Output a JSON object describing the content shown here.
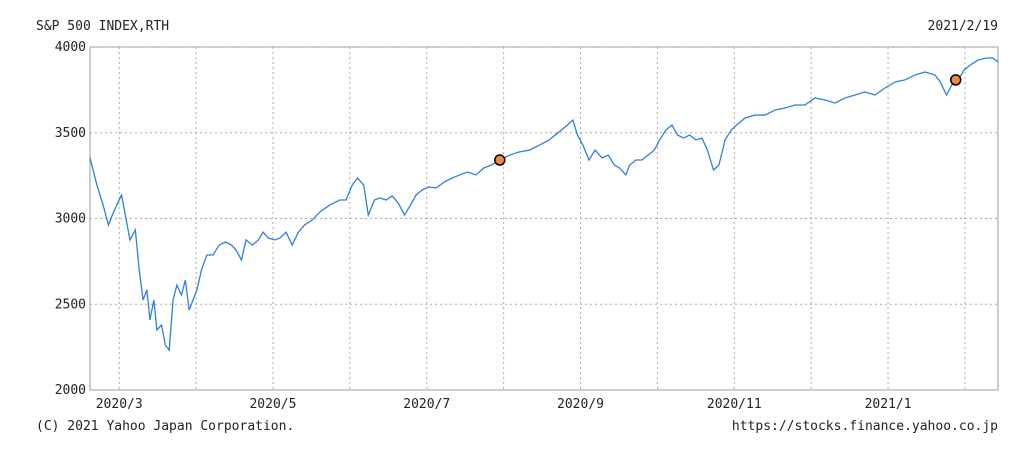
{
  "chart_data": {
    "type": "line",
    "title": "S&P 500 INDEX,RTH",
    "date": "2021/2/19",
    "copyright": "(C) 2021 Yahoo Japan Corporation.",
    "url": "https://stocks.finance.yahoo.co.jp",
    "grid": true,
    "xlim": [
      2.62,
      14.43
    ],
    "ylim": [
      2000,
      4000
    ],
    "yticks": [
      2000,
      2500,
      3000,
      3500,
      4000
    ],
    "xticks": [
      {
        "value": 3,
        "label": "2020/3"
      },
      {
        "value": 4,
        "label": null
      },
      {
        "value": 5,
        "label": "2020/5"
      },
      {
        "value": 6,
        "label": null
      },
      {
        "value": 7,
        "label": "2020/7"
      },
      {
        "value": 8,
        "label": null
      },
      {
        "value": 9,
        "label": "2020/9"
      },
      {
        "value": 10,
        "label": null
      },
      {
        "value": 11,
        "label": "2020/11"
      },
      {
        "value": 12,
        "label": null
      },
      {
        "value": 13,
        "label": "2021/1"
      },
      {
        "value": 14,
        "label": null
      }
    ],
    "series": [
      {
        "color": "#2f7fe0",
        "x": [
          2.62,
          2.71,
          2.79,
          2.86,
          2.91,
          2.97,
          3.03,
          3.08,
          3.14,
          3.21,
          3.26,
          3.31,
          3.36,
          3.4,
          3.45,
          3.49,
          3.55,
          3.6,
          3.65,
          3.7,
          3.75,
          3.81,
          3.86,
          3.91,
          3.96,
          4.01,
          4.07,
          4.14,
          4.22,
          4.3,
          4.38,
          4.46,
          4.52,
          4.59,
          4.65,
          4.73,
          4.81,
          4.87,
          4.94,
          5.02,
          5.09,
          5.17,
          5.25,
          5.33,
          5.41,
          5.51,
          5.61,
          5.74,
          5.87,
          5.95,
          6.03,
          6.1,
          6.18,
          6.24,
          6.32,
          6.39,
          6.47,
          6.55,
          6.63,
          6.71,
          6.79,
          6.86,
          6.94,
          7.02,
          7.12,
          7.23,
          7.33,
          7.43,
          7.53,
          7.64,
          7.74,
          7.84,
          7.95,
          8.08,
          8.2,
          8.34,
          8.47,
          8.59,
          8.72,
          8.83,
          8.9,
          8.96,
          9.03,
          9.11,
          9.19,
          9.28,
          9.36,
          9.44,
          9.51,
          9.59,
          9.64,
          9.72,
          9.8,
          9.88,
          9.96,
          10.03,
          10.11,
          10.19,
          10.26,
          10.34,
          10.42,
          10.5,
          10.58,
          10.65,
          10.73,
          10.8,
          10.88,
          10.96,
          11.03,
          11.14,
          11.27,
          11.4,
          11.53,
          11.66,
          11.79,
          11.92,
          12.05,
          12.18,
          12.31,
          12.44,
          12.57,
          12.7,
          12.83,
          12.96,
          13.09,
          13.22,
          13.35,
          13.48,
          13.61,
          13.68,
          13.76,
          13.83,
          13.91,
          13.99,
          14.07,
          14.17,
          14.28,
          14.36,
          14.43
        ],
        "values": [
          3353,
          3195,
          3079,
          2962,
          3020,
          3080,
          3137,
          3020,
          2875,
          2933,
          2700,
          2525,
          2583,
          2408,
          2525,
          2350,
          2379,
          2262,
          2233,
          2525,
          2612,
          2554,
          2641,
          2466,
          2525,
          2583,
          2700,
          2787,
          2787,
          2845,
          2863,
          2845,
          2816,
          2758,
          2875,
          2845,
          2875,
          2921,
          2886,
          2875,
          2886,
          2921,
          2845,
          2921,
          2962,
          2991,
          3038,
          3079,
          3108,
          3108,
          3195,
          3236,
          3195,
          3020,
          3108,
          3120,
          3108,
          3131,
          3090,
          3020,
          3079,
          3137,
          3166,
          3184,
          3178,
          3213,
          3236,
          3254,
          3271,
          3254,
          3294,
          3312,
          3341,
          3370,
          3388,
          3399,
          3429,
          3458,
          3504,
          3545,
          3574,
          3487,
          3429,
          3341,
          3399,
          3353,
          3370,
          3312,
          3294,
          3254,
          3312,
          3341,
          3341,
          3370,
          3399,
          3458,
          3516,
          3545,
          3487,
          3469,
          3487,
          3458,
          3469,
          3399,
          3283,
          3312,
          3458,
          3516,
          3545,
          3586,
          3603,
          3603,
          3633,
          3644,
          3662,
          3662,
          3703,
          3691,
          3673,
          3703,
          3720,
          3738,
          3720,
          3761,
          3796,
          3808,
          3837,
          3854,
          3837,
          3796,
          3720,
          3779,
          3808,
          3866,
          3895,
          3924,
          3936,
          3936,
          3913
        ]
      }
    ],
    "markers": {
      "color": "#f08a3c",
      "x": [
        7.95,
        13.88
      ],
      "values": [
        3341,
        3808
      ]
    }
  }
}
